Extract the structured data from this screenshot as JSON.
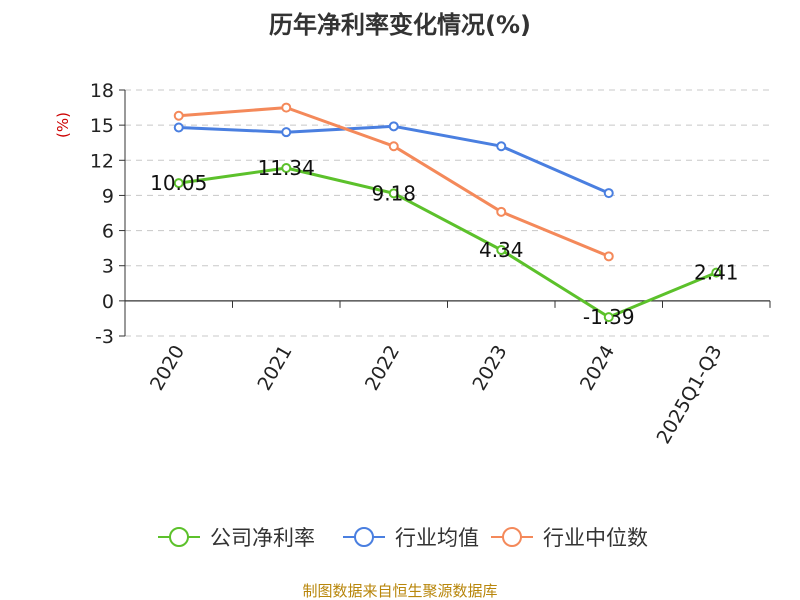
{
  "chart_data": {
    "type": "line",
    "title": "历年净利率变化情况(%)",
    "ylabel": "(%)",
    "xlabel": "",
    "categories": [
      "2020",
      "2021",
      "2022",
      "2023",
      "2024",
      "2025Q1-Q3"
    ],
    "ylim": [
      -3,
      18
    ],
    "yticks": [
      -3,
      0,
      3,
      6,
      9,
      12,
      15,
      18
    ],
    "grid": true,
    "legend_position": "bottom",
    "series": [
      {
        "name": "公司净利率",
        "color": "#5cc12b",
        "values": [
          10.05,
          11.34,
          9.18,
          4.34,
          -1.39,
          2.41
        ],
        "labels": [
          "10.05",
          "11.34",
          "9.18",
          "4.34",
          "-1.39",
          "2.41"
        ]
      },
      {
        "name": "行业均值",
        "color": "#4a7fe0",
        "values": [
          14.8,
          14.4,
          14.9,
          13.2,
          9.2,
          null
        ]
      },
      {
        "name": "行业中位数",
        "color": "#f4895a",
        "values": [
          15.8,
          16.5,
          13.2,
          7.6,
          3.8,
          null
        ]
      }
    ]
  },
  "source_text": "制图数据来自恒生聚源数据库"
}
